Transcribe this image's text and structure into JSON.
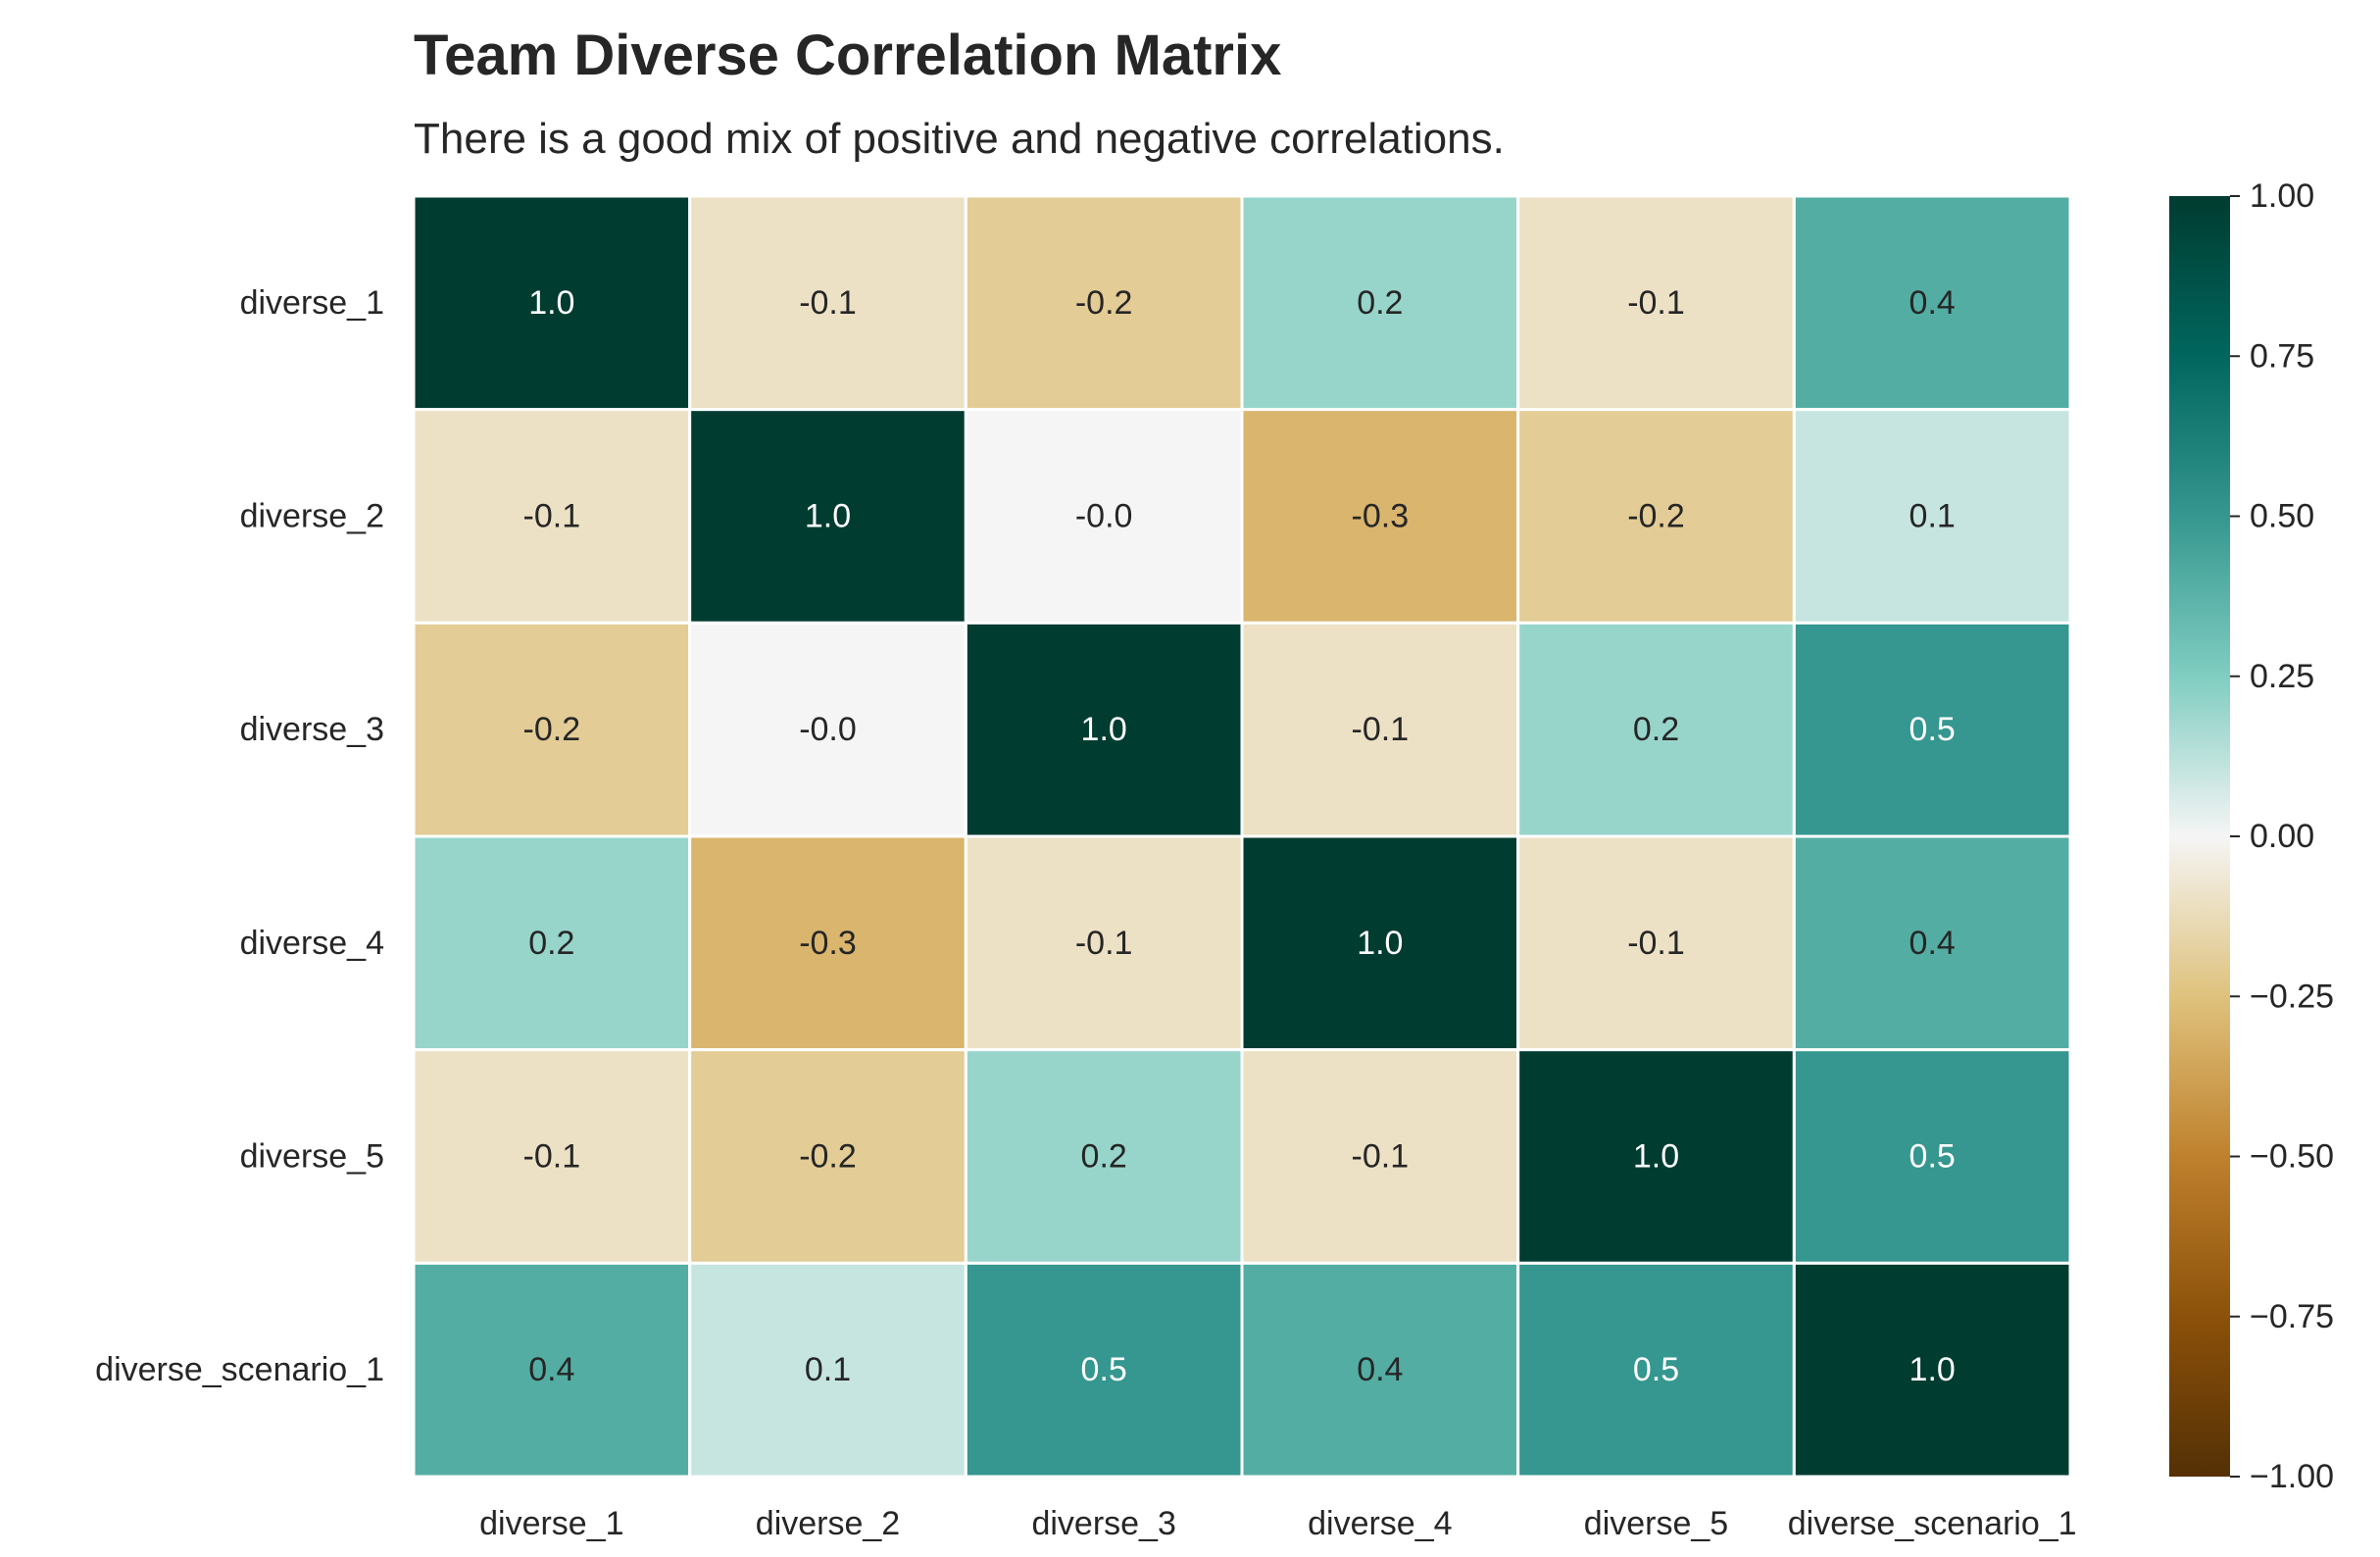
{
  "chart_data": {
    "type": "heatmap",
    "title": "Team Diverse Correlation Matrix",
    "subtitle": "There is a good mix of positive and negative correlations.",
    "x_labels": [
      "diverse_1",
      "diverse_2",
      "diverse_3",
      "diverse_4",
      "diverse_5",
      "diverse_scenario_1"
    ],
    "y_labels": [
      "diverse_1",
      "diverse_2",
      "diverse_3",
      "diverse_4",
      "diverse_5",
      "diverse_scenario_1"
    ],
    "values": [
      [
        1.0,
        -0.1,
        -0.2,
        0.2,
        -0.1,
        0.4
      ],
      [
        -0.1,
        1.0,
        -0.0,
        -0.3,
        -0.2,
        0.1
      ],
      [
        -0.2,
        -0.0,
        1.0,
        -0.1,
        0.2,
        0.5
      ],
      [
        0.2,
        -0.3,
        -0.1,
        1.0,
        -0.1,
        0.4
      ],
      [
        -0.1,
        -0.2,
        0.2,
        -0.1,
        1.0,
        0.5
      ],
      [
        0.4,
        0.1,
        0.5,
        0.4,
        0.5,
        1.0
      ]
    ],
    "annotations": [
      [
        "1.0",
        "-0.1",
        "-0.2",
        "0.2",
        "-0.1",
        "0.4"
      ],
      [
        "-0.1",
        "1.0",
        "-0.0",
        "-0.3",
        "-0.2",
        "0.1"
      ],
      [
        "-0.2",
        "-0.0",
        "1.0",
        "-0.1",
        "0.2",
        "0.5"
      ],
      [
        "0.2",
        "-0.3",
        "-0.1",
        "1.0",
        "-0.1",
        "0.4"
      ],
      [
        "-0.1",
        "-0.2",
        "0.2",
        "-0.1",
        "1.0",
        "0.5"
      ],
      [
        "0.4",
        "0.1",
        "0.5",
        "0.4",
        "0.5",
        "1.0"
      ]
    ],
    "colorbar": {
      "vmin": -1.0,
      "vmax": 1.0,
      "colormap": "BrBG",
      "ticks": [
        1.0,
        0.75,
        0.5,
        0.25,
        0.0,
        -0.25,
        -0.5,
        -0.75,
        -1.0
      ],
      "tick_labels": [
        "1.00",
        "0.75",
        "0.50",
        "0.25",
        "0.00",
        "−0.25",
        "−0.50",
        "−0.75",
        "−1.00"
      ]
    },
    "grid": false,
    "legend": "colorbar-right"
  },
  "colors": {
    "text": "#262626",
    "cell_border": "#ffffff",
    "annotation_dark": "#262626",
    "annotation_light": "#ffffff"
  }
}
